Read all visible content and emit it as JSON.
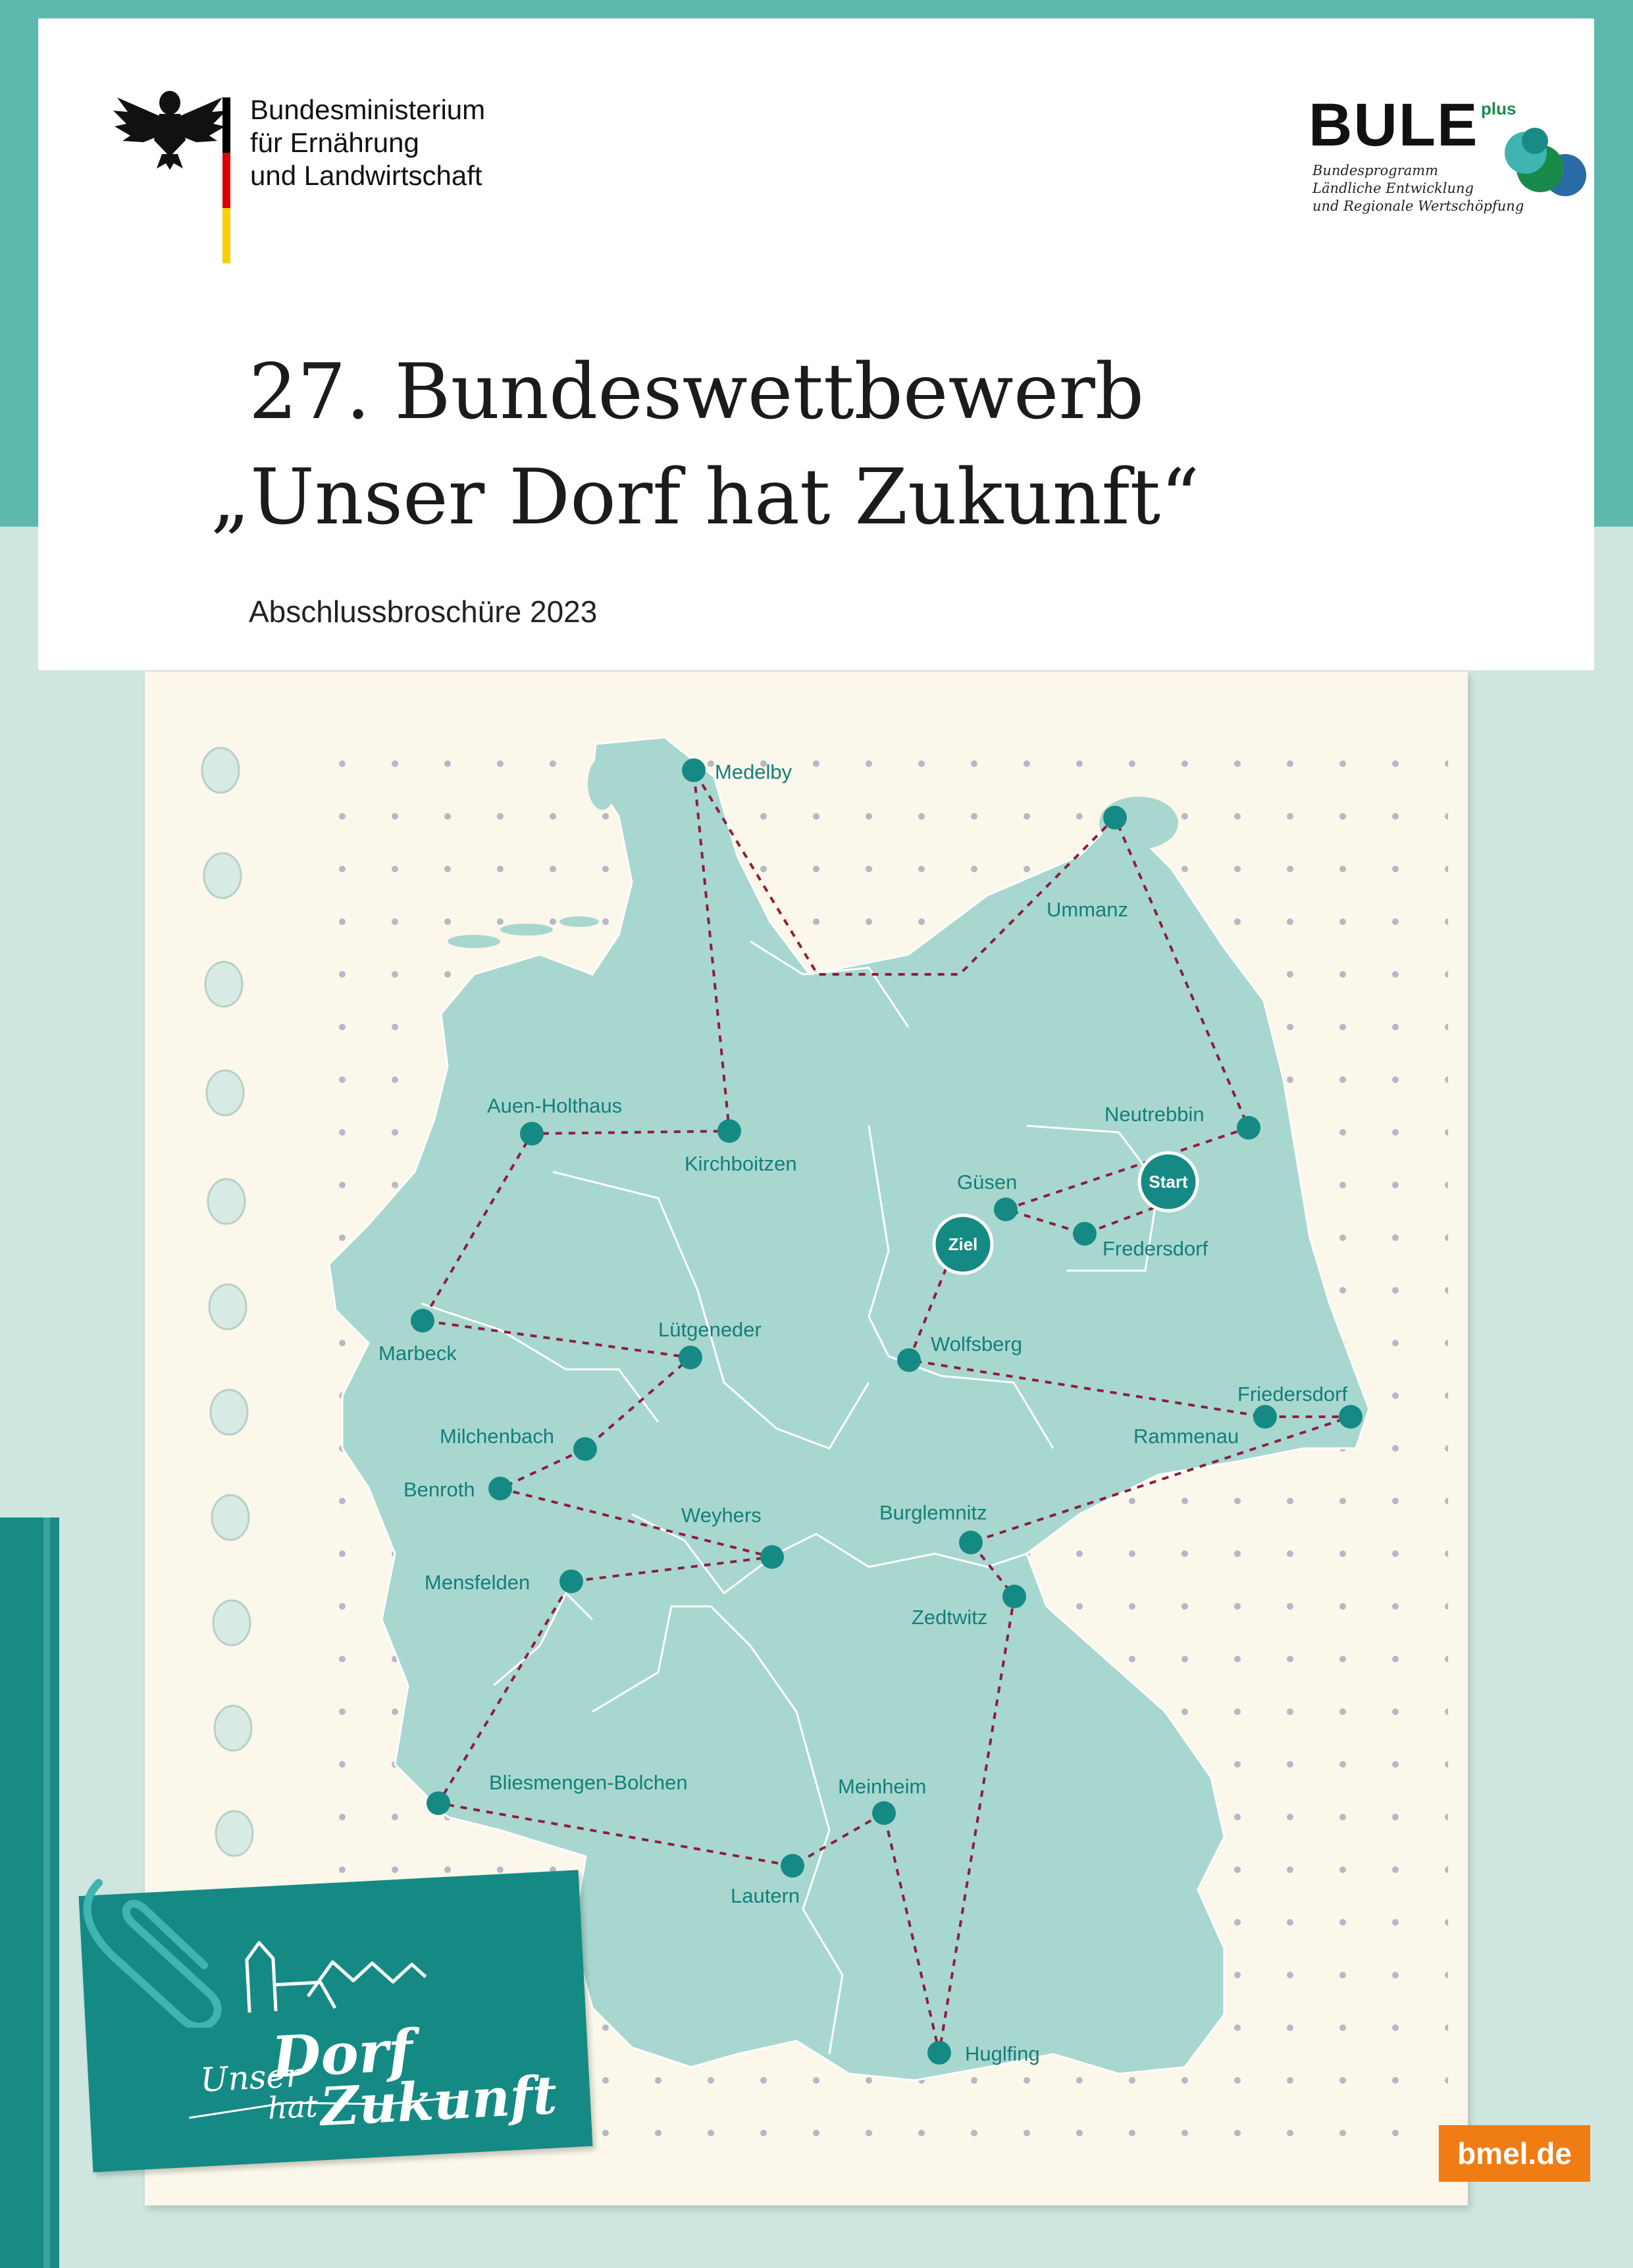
{
  "header": {
    "ministry_lines": "Bundesministerium\nfür Ernährung\nund Landwirtschaft",
    "bule_title": "BULE",
    "bule_plus": "plus",
    "bule_sub": "Bundesprogramm\nLändliche Entwicklung\nund Regionale Wertschöpfung",
    "title_line1": "27. Bundeswettbewerb",
    "title_line2": "„Unser Dorf hat Zukunft“",
    "subtitle": "Abschlussbroschüre 2023"
  },
  "map": {
    "start_label": "Start",
    "goal_label": "Ziel",
    "cities": {
      "medelby": "Medelby",
      "ummanz": "Ummanz",
      "auen_holthaus": "Auen-Holthaus",
      "kirchboitzen": "Kirchboitzen",
      "neutrebbin": "Neutrebbin",
      "guesen": "Güsen",
      "fredersdorf": "Fredersdorf",
      "luetgeneder": "Lütgeneder",
      "marbeck": "Marbeck",
      "wolfsberg": "Wolfsberg",
      "friedersdorf": "Friedersdorf",
      "rammenau": "Rammenau",
      "milchenbach": "Milchenbach",
      "benroth": "Benroth",
      "weyhers": "Weyhers",
      "burglemnitz": "Burglemnitz",
      "mensfelden": "Mensfelden",
      "zedtwitz": "Zedtwitz",
      "bliesmengen_bolchen": "Bliesmengen-Bolchen",
      "meinheim": "Meinheim",
      "lautern": "Lautern",
      "huglfing": "Huglfing"
    }
  },
  "note": {
    "unser": "Unser",
    "dorf": "Dorf",
    "hat": "hat",
    "zukunft": "Zukunft"
  },
  "footer": {
    "web": "bmel.de"
  },
  "colors": {
    "teal": "#158a84",
    "map_fill": "#a8d7cf",
    "route": "#8e1d3e",
    "paper": "#fbf7ea",
    "badge": "#ef7d14"
  }
}
